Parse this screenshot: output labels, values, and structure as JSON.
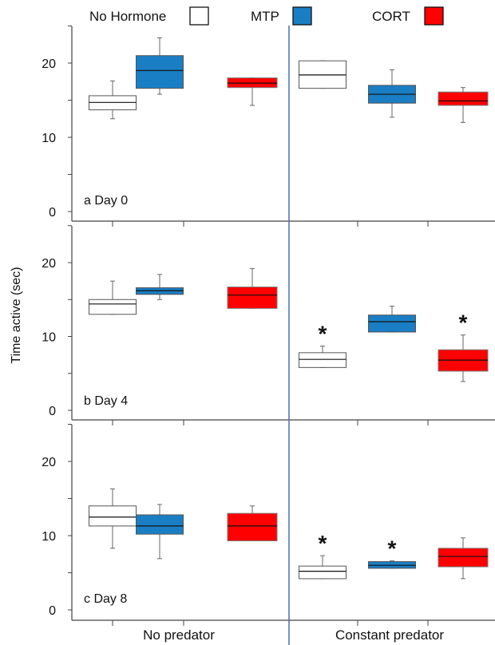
{
  "legend": {
    "items": [
      {
        "label": "No Hormone",
        "color": "#ffffff"
      },
      {
        "label": "MTP",
        "color": "#1a7ec4"
      },
      {
        "label": "CORT",
        "color": "#ff0000"
      }
    ]
  },
  "y_axis_label": "Time active (sec)",
  "x_groups": [
    "No predator",
    "Constant predator"
  ],
  "chart_data": {
    "type": "box",
    "ylabel": "Time active (sec)",
    "groups": [
      "No predator",
      "Constant predator"
    ],
    "series": [
      "No Hormone",
      "MTP",
      "CORT"
    ],
    "colors": {
      "No Hormone": "#ffffff",
      "MTP": "#1a7ec4",
      "CORT": "#ff0000"
    },
    "box_edge_colors": {
      "No Hormone": "#555555",
      "MTP": "#555555",
      "CORT": "#7a7a7a"
    },
    "divider_color": "#4a6fb0",
    "panels": [
      {
        "label": "a Day 0",
        "ylim": [
          0,
          25
        ],
        "yticks": [
          0,
          10,
          20
        ],
        "boxes": [
          {
            "group": "No predator",
            "series": "No Hormone",
            "min": 12.5,
            "q1": 13.7,
            "median": 14.7,
            "q3": 15.6,
            "max": 17.6,
            "star": false
          },
          {
            "group": "No predator",
            "series": "MTP",
            "min": 15.8,
            "q1": 16.6,
            "median": 19.0,
            "q3": 21.0,
            "max": 23.4,
            "star": false
          },
          {
            "group": "No predator",
            "series": "CORT",
            "min": 14.3,
            "q1": 16.7,
            "median": 17.3,
            "q3": 18.0,
            "max": 18.0,
            "star": false
          },
          {
            "group": "Constant predator",
            "series": "No Hormone",
            "min": 16.6,
            "q1": 16.6,
            "median": 18.4,
            "q3": 20.3,
            "max": 20.3,
            "star": false
          },
          {
            "group": "Constant predator",
            "series": "MTP",
            "min": 12.7,
            "q1": 14.6,
            "median": 15.8,
            "q3": 17.0,
            "max": 19.1,
            "star": false
          },
          {
            "group": "Constant predator",
            "series": "CORT",
            "min": 12.0,
            "q1": 14.3,
            "median": 14.9,
            "q3": 16.1,
            "max": 16.7,
            "star": false
          }
        ]
      },
      {
        "label": "b Day 4",
        "ylim": [
          0,
          25
        ],
        "yticks": [
          0,
          10,
          20
        ],
        "boxes": [
          {
            "group": "No predator",
            "series": "No Hormone",
            "min": 13.0,
            "q1": 13.0,
            "median": 14.4,
            "q3": 15.0,
            "max": 17.5,
            "star": false
          },
          {
            "group": "No predator",
            "series": "MTP",
            "min": 15.0,
            "q1": 15.7,
            "median": 16.2,
            "q3": 16.6,
            "max": 18.4,
            "star": false
          },
          {
            "group": "No predator",
            "series": "CORT",
            "min": 13.8,
            "q1": 13.8,
            "median": 15.6,
            "q3": 16.7,
            "max": 19.2,
            "star": false
          },
          {
            "group": "Constant predator",
            "series": "No Hormone",
            "min": 5.8,
            "q1": 5.8,
            "median": 6.9,
            "q3": 7.8,
            "max": 8.7,
            "star": true
          },
          {
            "group": "Constant predator",
            "series": "MTP",
            "min": 10.6,
            "q1": 10.6,
            "median": 12.0,
            "q3": 12.9,
            "max": 14.1,
            "star": false
          },
          {
            "group": "Constant predator",
            "series": "CORT",
            "min": 3.9,
            "q1": 5.3,
            "median": 6.8,
            "q3": 8.2,
            "max": 10.2,
            "star": true
          }
        ]
      },
      {
        "label": "c Day 8",
        "ylim": [
          0,
          25
        ],
        "yticks": [
          0,
          10,
          20
        ],
        "boxes": [
          {
            "group": "No predator",
            "series": "No Hormone",
            "min": 8.3,
            "q1": 11.3,
            "median": 12.5,
            "q3": 14.0,
            "max": 16.3,
            "star": false
          },
          {
            "group": "No predator",
            "series": "MTP",
            "min": 6.9,
            "q1": 10.2,
            "median": 11.3,
            "q3": 12.8,
            "max": 14.2,
            "star": false
          },
          {
            "group": "No predator",
            "series": "CORT",
            "min": 9.3,
            "q1": 9.3,
            "median": 11.3,
            "q3": 13.0,
            "max": 14.0,
            "star": false
          },
          {
            "group": "Constant predator",
            "series": "No Hormone",
            "min": 4.2,
            "q1": 4.2,
            "median": 5.2,
            "q3": 5.9,
            "max": 7.3,
            "star": true
          },
          {
            "group": "Constant predator",
            "series": "MTP",
            "min": 5.6,
            "q1": 5.6,
            "median": 6.0,
            "q3": 6.5,
            "max": 6.6,
            "star": true
          },
          {
            "group": "Constant predator",
            "series": "CORT",
            "min": 4.2,
            "q1": 5.8,
            "median": 7.2,
            "q3": 8.3,
            "max": 9.7,
            "star": false
          }
        ]
      }
    ]
  }
}
